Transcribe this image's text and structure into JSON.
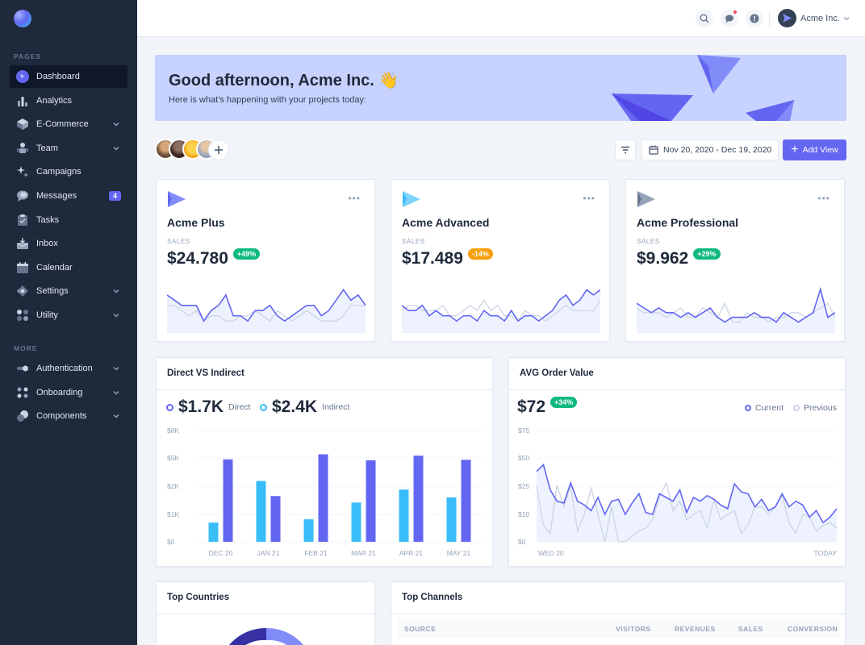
{
  "sidebar": {
    "pages_title": "PAGES",
    "more_title": "MORE",
    "items": [
      {
        "label": "Dashboard",
        "icon": "dashboard-icon"
      },
      {
        "label": "Analytics",
        "icon": "analytics-icon"
      },
      {
        "label": "E-Commerce",
        "icon": "ecommerce-icon"
      },
      {
        "label": "Team",
        "icon": "team-icon"
      },
      {
        "label": "Campaigns",
        "icon": "campaigns-icon"
      },
      {
        "label": "Messages",
        "icon": "messages-icon",
        "badge": "4"
      },
      {
        "label": "Tasks",
        "icon": "tasks-icon"
      },
      {
        "label": "Inbox",
        "icon": "inbox-icon"
      },
      {
        "label": "Calendar",
        "icon": "calendar-icon"
      },
      {
        "label": "Settings",
        "icon": "settings-icon"
      },
      {
        "label": "Utility",
        "icon": "utility-icon"
      }
    ],
    "more_items": [
      {
        "label": "Authentication",
        "icon": "authentication-icon"
      },
      {
        "label": "Onboarding",
        "icon": "onboarding-icon"
      },
      {
        "label": "Components",
        "icon": "components-icon"
      }
    ]
  },
  "header": {
    "user_name": "Acme Inc."
  },
  "banner": {
    "title": "Good afternoon, Acme Inc. 👋",
    "subtitle": "Here is what’s happening with your projects today:"
  },
  "toolbar": {
    "date_range": "Nov 20, 2020 - Dec 19, 2020",
    "add_view_label": "Add View"
  },
  "products": [
    {
      "name": "Acme Plus",
      "label": "SALES",
      "value": "$24.780",
      "change": "+49%",
      "change_color": "#10b981"
    },
    {
      "name": "Acme Advanced",
      "label": "SALES",
      "value": "$17.489",
      "change": "-14%",
      "change_color": "#f59e0b"
    },
    {
      "name": "Acme Professional",
      "label": "SALES",
      "value": "$9.962",
      "change": "+29%",
      "change_color": "#10b981"
    }
  ],
  "direct_indirect": {
    "title": "Direct VS Indirect",
    "direct_value": "$1.7K",
    "direct_label": "Direct",
    "indirect_value": "$2.4K",
    "indirect_label": "Indirect"
  },
  "avg_order": {
    "title": "AVG Order Value",
    "value": "$72",
    "change": "+34%",
    "current_label": "Current",
    "previous_label": "Previous"
  },
  "top_countries": {
    "title": "Top Countries"
  },
  "top_channels": {
    "title": "Top Channels",
    "columns": [
      "SOURCE",
      "VISITORS",
      "REVENUES",
      "SALES",
      "CONVERSION"
    ]
  },
  "chart_data": [
    {
      "type": "bar",
      "categories": [
        "DEC 20",
        "JAN 21",
        "FEB 21",
        "MAR 21",
        "APR 21",
        "MAY 21"
      ],
      "series": [
        {
          "name": "Direct",
          "values": [
            700,
            2550,
            820,
            1420,
            1880,
            1600
          ],
          "color": "#38bdf8"
        },
        {
          "name": "Indirect",
          "values": [
            4850,
            1650,
            5400,
            4750,
            5250,
            4800
          ],
          "color": "#6366f1"
        }
      ],
      "series_order": [
        "Direct",
        "Indirect"
      ],
      "y_ticks": [
        "$0",
        "$1K",
        "$2K",
        "$5K",
        "$8K"
      ],
      "ylim": [
        0,
        8000
      ]
    },
    {
      "type": "line",
      "x_labels": [
        "WED 20",
        "TODAY"
      ],
      "y_ticks": [
        "$0",
        "$10",
        "$25",
        "$50",
        "$75"
      ],
      "ylim": [
        0,
        75
      ],
      "series": [
        {
          "name": "Current",
          "color": "#6366f1",
          "values": [
            38,
            44,
            23,
            17,
            16,
            28,
            17,
            15,
            12,
            19,
            10,
            17,
            18,
            10,
            16,
            21,
            11,
            10,
            21,
            19,
            17,
            23,
            11,
            19,
            17,
            20,
            18,
            15,
            13,
            27,
            22,
            21,
            14,
            18,
            12,
            14,
            21,
            14,
            17,
            15,
            9,
            12,
            7,
            9,
            13
          ]
        },
        {
          "name": "Previous",
          "color": "#cbd5e1",
          "values": [
            25,
            6,
            3,
            26,
            14,
            25,
            4,
            10,
            24,
            10,
            0,
            14,
            0,
            0,
            2,
            4,
            5,
            8,
            19,
            28,
            12,
            17,
            8,
            10,
            12,
            5,
            18,
            8,
            10,
            12,
            3,
            6,
            14,
            14,
            10,
            14,
            20,
            7,
            3,
            10,
            9,
            4,
            6,
            7,
            5
          ]
        }
      ]
    },
    {
      "type": "line",
      "series": [
        {
          "name": "current",
          "values": [
            7,
            6,
            5,
            5,
            5,
            2,
            4,
            5,
            7,
            3,
            3,
            2,
            4,
            4,
            5,
            3,
            2,
            3,
            4,
            5,
            5,
            3,
            4,
            6,
            8,
            6,
            7,
            5
          ]
        },
        {
          "name": "previous",
          "values": [
            5,
            5,
            4,
            3,
            4,
            2,
            3,
            3,
            2,
            2,
            3,
            3,
            4,
            3,
            2,
            4,
            3,
            2,
            3,
            4,
            3,
            2,
            2,
            2,
            3,
            5,
            5,
            5
          ]
        }
      ]
    },
    {
      "type": "line",
      "series": [
        {
          "name": "current",
          "values": [
            5,
            4,
            4,
            5,
            3,
            4,
            3,
            3,
            2,
            3,
            3,
            2,
            4,
            3,
            3,
            2,
            4,
            2,
            3,
            3,
            2,
            3,
            4,
            6,
            7,
            5,
            6,
            8,
            7,
            8
          ]
        },
        {
          "name": "previous",
          "values": [
            4,
            5,
            5,
            4,
            4,
            4,
            5,
            3,
            3,
            4,
            5,
            4,
            6,
            4,
            5,
            3,
            3,
            2,
            4,
            3,
            3,
            2,
            3,
            4,
            5,
            4,
            4,
            4,
            4,
            6
          ]
        }
      ]
    },
    {
      "type": "line",
      "series": [
        {
          "name": "current",
          "values": [
            6,
            5,
            4,
            5,
            4,
            4,
            3,
            4,
            3,
            4,
            5,
            3,
            2,
            3,
            3,
            3,
            4,
            3,
            3,
            2,
            4,
            3,
            2,
            3,
            4,
            9,
            3,
            4
          ]
        },
        {
          "name": "previous",
          "values": [
            5,
            4,
            4,
            4,
            3,
            4,
            5,
            3,
            3,
            5,
            4,
            3,
            6,
            2,
            2,
            4,
            3,
            3,
            2,
            3,
            3,
            4,
            4,
            3,
            4,
            5,
            6,
            3
          ]
        }
      ]
    }
  ]
}
